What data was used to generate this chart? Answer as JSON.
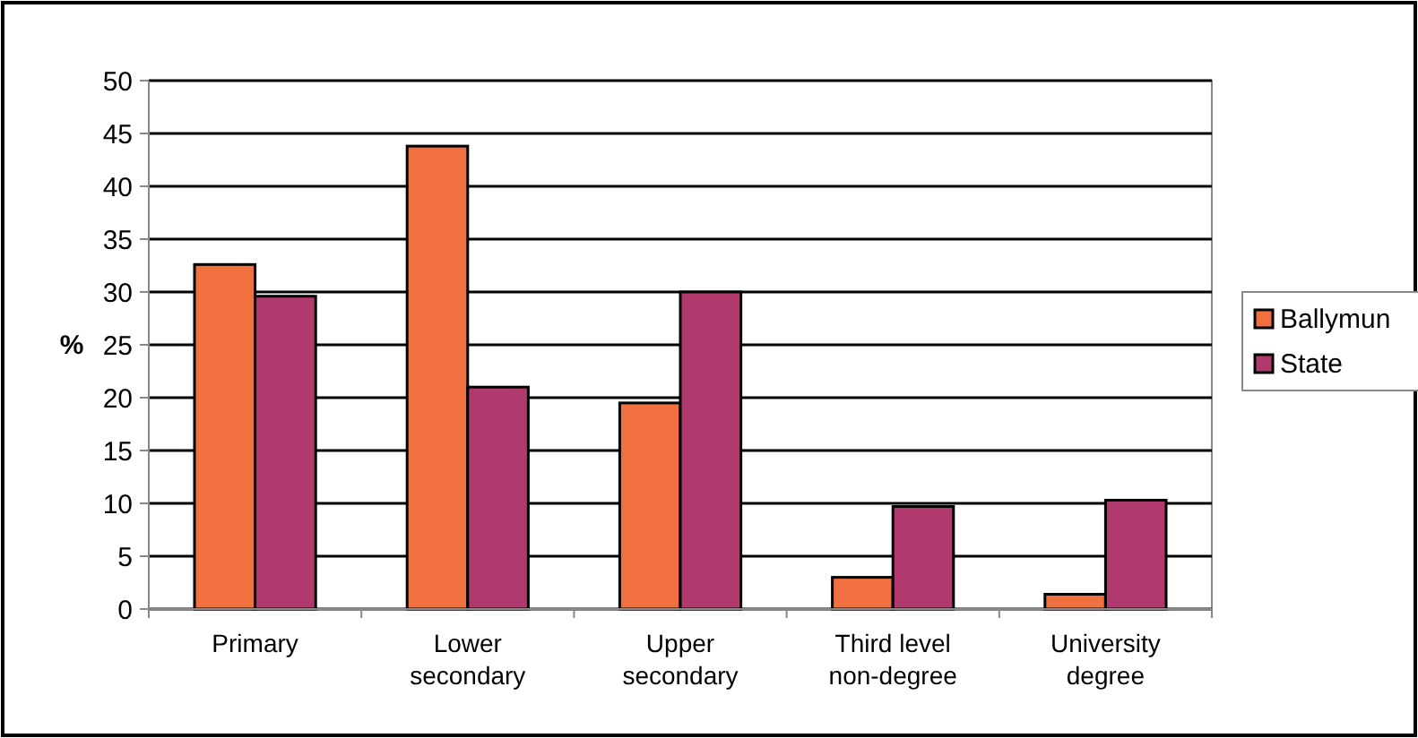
{
  "chart_data": {
    "type": "bar",
    "ylabel": "%",
    "categories": [
      "Primary",
      "Lower secondary",
      "Upper secondary",
      "Third level non-degree",
      "University degree"
    ],
    "series": [
      {
        "name": "Ballymun",
        "color": "#f07040",
        "values": [
          32.6,
          43.8,
          19.5,
          3.0,
          1.4
        ]
      },
      {
        "name": "State",
        "color": "#b03a6e",
        "values": [
          29.6,
          21.0,
          30.0,
          9.7,
          10.3
        ]
      }
    ],
    "ylim": [
      0,
      50
    ],
    "yticks": [
      0,
      5,
      10,
      15,
      20,
      25,
      30,
      35,
      40,
      45,
      50
    ],
    "grid": "y",
    "legend": "right"
  }
}
